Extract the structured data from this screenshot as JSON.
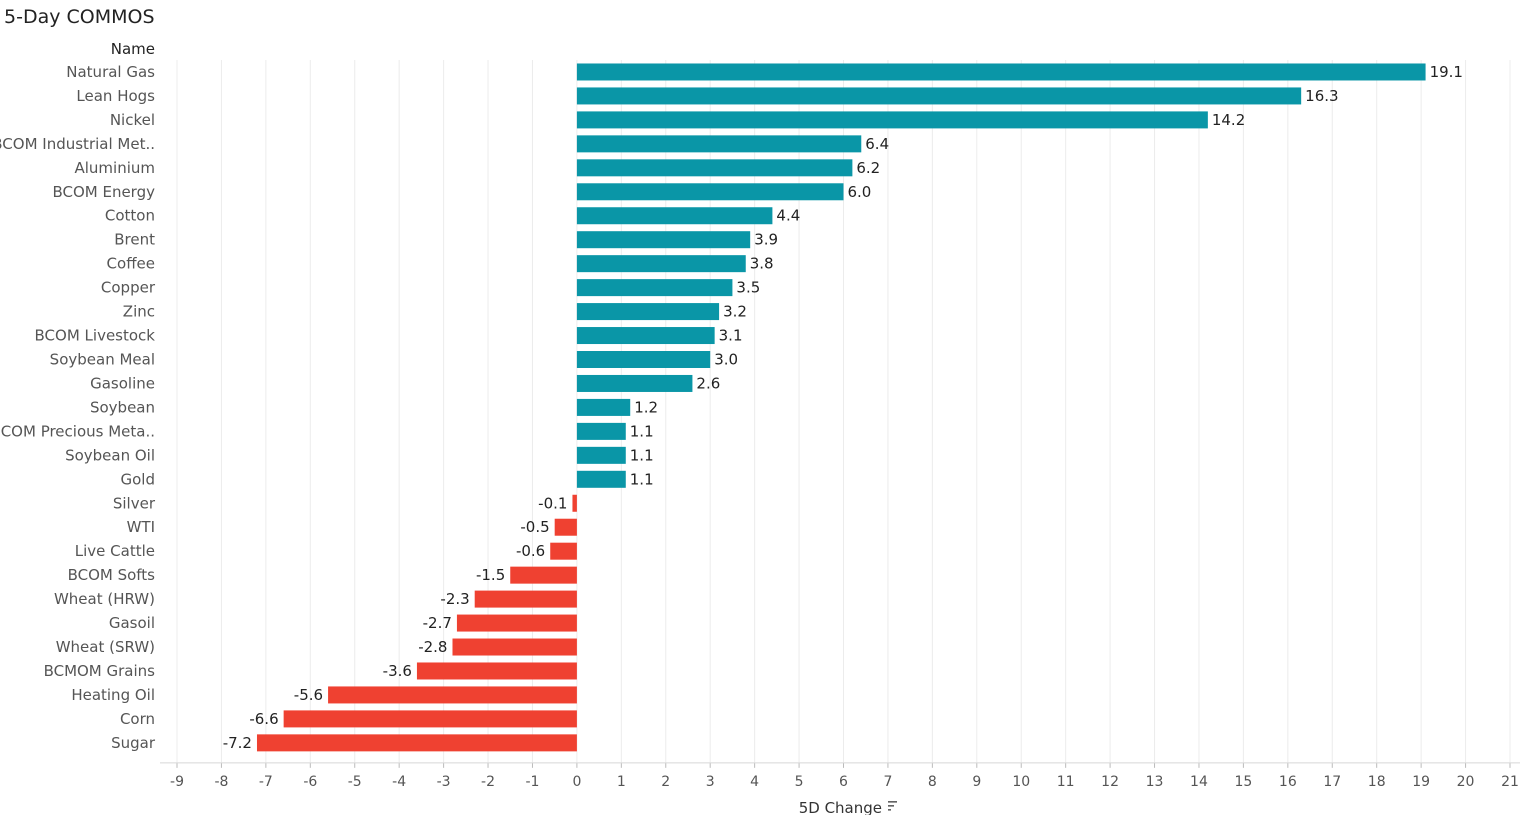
{
  "title": "5-Day COMMOS",
  "name_header": "Name",
  "chart_data": {
    "type": "bar",
    "orientation": "horizontal",
    "xlabel": "5D Change",
    "xlim": [
      -9,
      21
    ],
    "xticks": [
      "-9",
      "-8",
      "-7",
      "-6",
      "-5",
      "-4",
      "-3",
      "-2",
      "-1",
      "0",
      "1",
      "2",
      "3",
      "4",
      "5",
      "6",
      "7",
      "8",
      "9",
      "10",
      "11",
      "12",
      "13",
      "14",
      "15",
      "16",
      "17",
      "18",
      "19",
      "20",
      "21"
    ],
    "positive_color": "#0a96a7",
    "negative_color": "#ef4131",
    "grid": true,
    "categories": [
      "Natural Gas",
      "Lean Hogs",
      "Nickel",
      "BCOM Industrial Met..",
      "Aluminium",
      "BCOM Energy",
      "Cotton",
      "Brent",
      "Coffee",
      "Copper",
      "Zinc",
      "BCOM Livestock",
      "Soybean Meal",
      "Gasoline",
      "Soybean",
      "BCOM Precious Meta..",
      "Soybean Oil",
      "Gold",
      "Silver",
      "WTI",
      "Live Cattle",
      "BCOM Softs",
      "Wheat (HRW)",
      "Gasoil",
      "Wheat (SRW)",
      "BCMOM Grains",
      "Heating Oil",
      "Corn",
      "Sugar"
    ],
    "values": [
      19.1,
      16.3,
      14.2,
      6.4,
      6.2,
      6.0,
      4.4,
      3.9,
      3.8,
      3.5,
      3.2,
      3.1,
      3.0,
      2.6,
      1.2,
      1.1,
      1.1,
      1.1,
      -0.1,
      -0.5,
      -0.6,
      -1.5,
      -2.3,
      -2.7,
      -2.8,
      -3.6,
      -5.6,
      -6.6,
      -7.2
    ],
    "value_labels": [
      "19.1",
      "16.3",
      "14.2",
      "6.4",
      "6.2",
      "6.0",
      "4.4",
      "3.9",
      "3.8",
      "3.5",
      "3.2",
      "3.1",
      "3.0",
      "2.6",
      "1.2",
      "1.1",
      "1.1",
      "1.1",
      "-0.1",
      "-0.5",
      "-0.6",
      "-1.5",
      "-2.3",
      "-2.7",
      "-2.8",
      "-3.6",
      "-5.6",
      "-6.6",
      "-7.2"
    ]
  }
}
